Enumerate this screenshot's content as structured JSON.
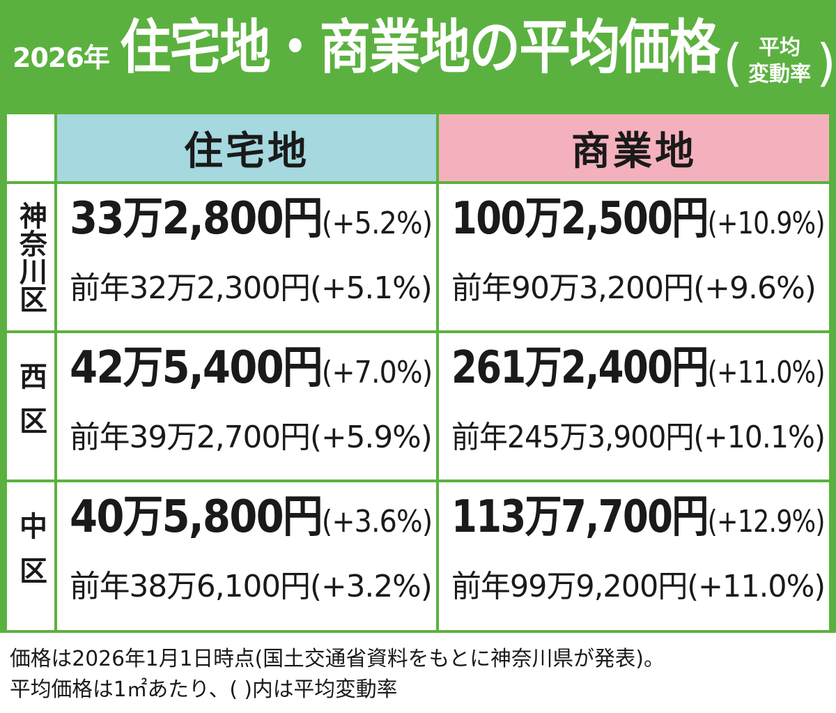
{
  "header": {
    "year": "2026年",
    "title": "住宅地・商業地の平均価格",
    "note_line1": "平均",
    "note_line2": "変動率",
    "paren_open": "(",
    "paren_close": ")"
  },
  "table": {
    "col_residential": "住宅地",
    "col_commercial": "商業地",
    "rows": [
      {
        "ward": "神奈川区",
        "residential": {
          "current": "33万2,800円",
          "current_rate": "(+5.2%)",
          "previous": "前年32万2,300円(+5.1%)"
        },
        "commercial": {
          "current": "100万2,500円",
          "current_rate": "(+10.9%)",
          "previous": "前年90万3,200円(+9.6%)"
        }
      },
      {
        "ward": "西区",
        "residential": {
          "current": "42万5,400円",
          "current_rate": "(+7.0%)",
          "previous": "前年39万2,700円(+5.9%)"
        },
        "commercial": {
          "current": "261万2,400円",
          "current_rate": "(+11.0%)",
          "previous": "前年245万3,900円(+10.1%)"
        }
      },
      {
        "ward": "中区",
        "residential": {
          "current": "40万5,800円",
          "current_rate": "(+3.6%)",
          "previous": "前年38万6,100円(+3.2%)"
        },
        "commercial": {
          "current": "113万7,700円",
          "current_rate": "(+12.9%)",
          "previous": "前年99万9,200円(+11.0%)"
        }
      }
    ]
  },
  "footnote": {
    "line1": "価格は2026年1月1日時点(国土交通省資料をもとに神奈川県が発表)。",
    "line2": "平均価格は1㎡あたり、( )内は平均変動率"
  },
  "colors": {
    "green": "#5bb13f",
    "residential_header": "#a5d8df",
    "commercial_header": "#f4b1bd"
  }
}
